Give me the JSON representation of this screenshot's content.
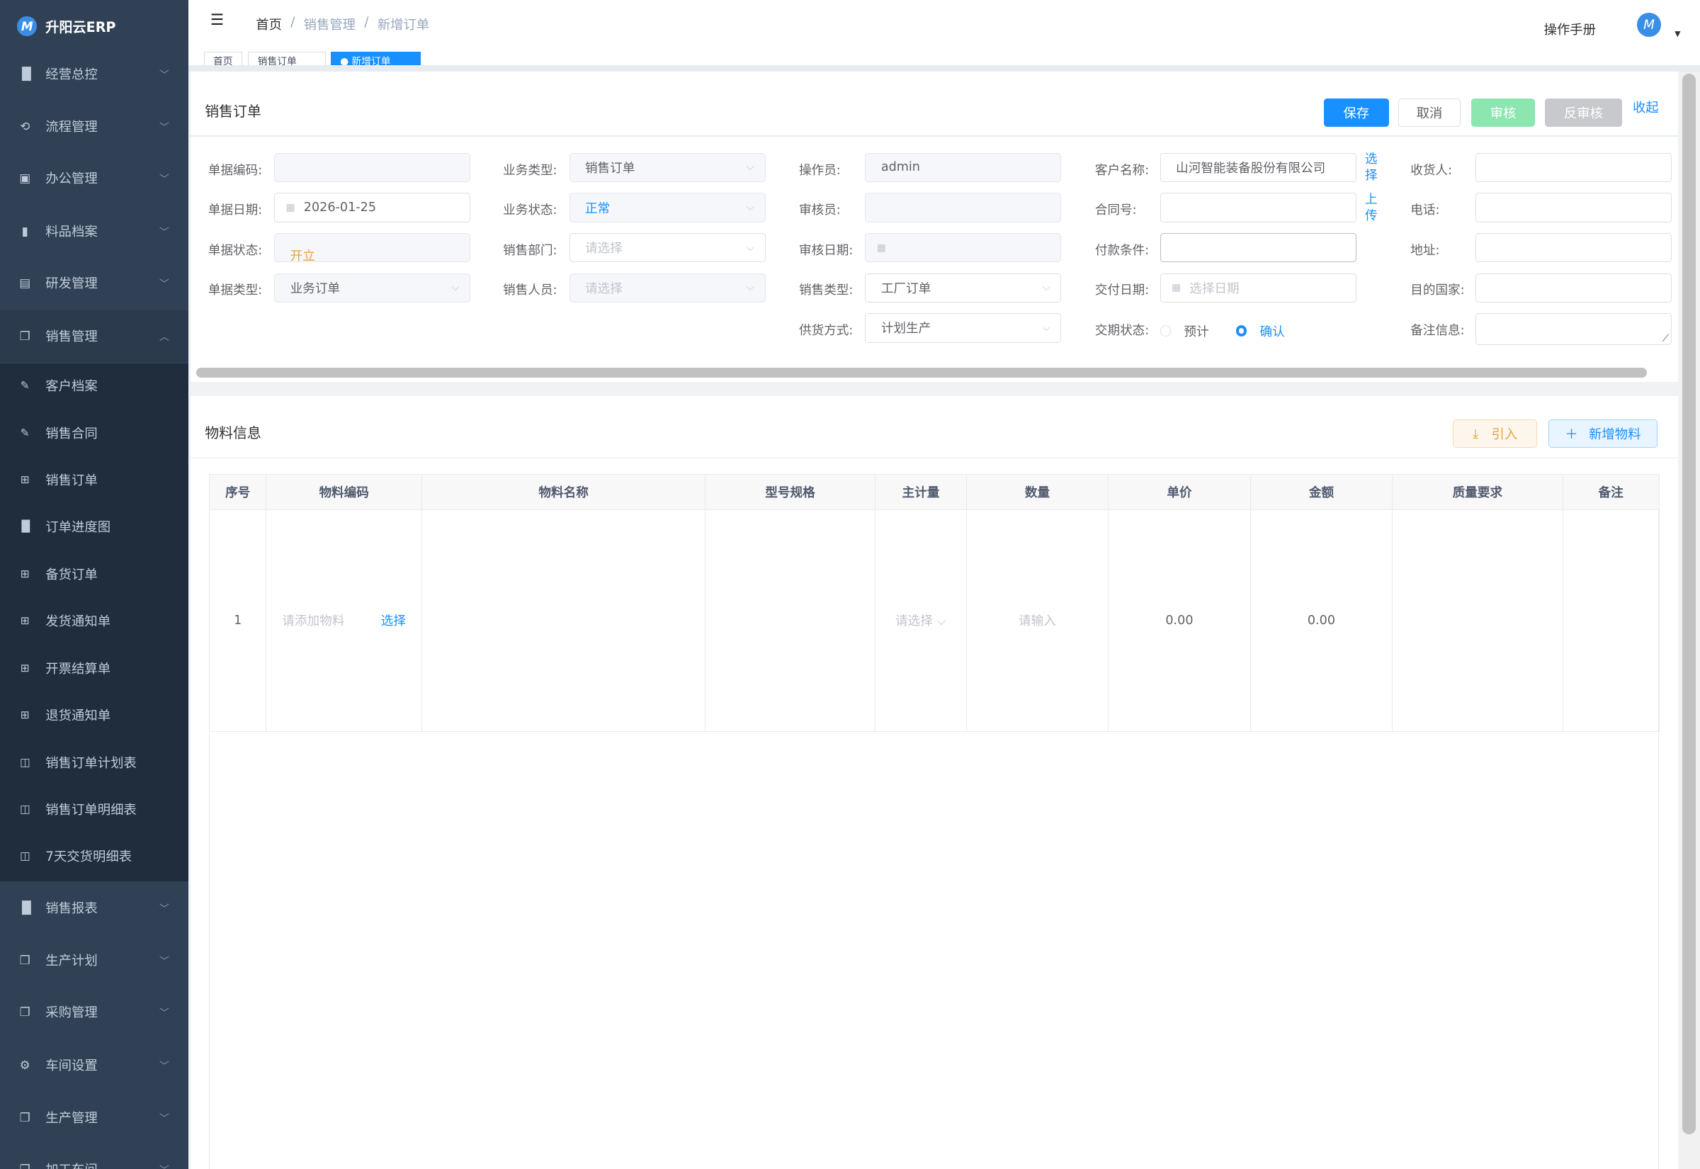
{
  "app": {
    "title": "升阳云ERP",
    "logo_letter": "M"
  },
  "sidebar": {
    "items": [
      {
        "label": "经营总控",
        "icon": "bar-chart-icon"
      },
      {
        "label": "流程管理",
        "icon": "flow-icon"
      },
      {
        "label": "办公管理",
        "icon": "office-icon"
      },
      {
        "label": "料品档案",
        "icon": "book-icon"
      },
      {
        "label": "研发管理",
        "icon": "research-icon"
      },
      {
        "label": "销售管理",
        "icon": "documents-icon",
        "expanded": true
      }
    ],
    "sub_items": [
      {
        "label": "客户档案",
        "icon": "edit-doc-icon"
      },
      {
        "label": "销售合同",
        "icon": "edit-doc-icon"
      },
      {
        "label": "销售订单",
        "icon": "table-icon"
      },
      {
        "label": "订单进度图",
        "icon": "bar-chart-icon"
      },
      {
        "label": "备货订单",
        "icon": "table-icon"
      },
      {
        "label": "发货通知单",
        "icon": "table-icon"
      },
      {
        "label": "开票结算单",
        "icon": "table-icon"
      },
      {
        "label": "退货通知单",
        "icon": "table-icon"
      },
      {
        "label": "销售订单计划表",
        "icon": "open-book-icon"
      },
      {
        "label": "销售订单明细表",
        "icon": "open-book-icon"
      },
      {
        "label": "7天交货明细表",
        "icon": "open-book-icon"
      }
    ],
    "items_after": [
      {
        "label": "销售报表",
        "icon": "bar-chart-icon"
      },
      {
        "label": "生产计划",
        "icon": "documents-icon"
      },
      {
        "label": "采购管理",
        "icon": "documents-icon"
      },
      {
        "label": "车间设置",
        "icon": "gear-icon"
      },
      {
        "label": "生产管理",
        "icon": "documents-icon"
      },
      {
        "label": "加工车间",
        "icon": "documents-icon"
      }
    ]
  },
  "navbar": {
    "breadcrumb": [
      "首页",
      "销售管理",
      "新增订单"
    ],
    "manual": "操作手册",
    "avatar_letter": "M"
  },
  "tabs": [
    {
      "label": "首页"
    },
    {
      "label": "销售订单"
    },
    {
      "label": "● 新增订单",
      "active": true
    }
  ],
  "order": {
    "title": "销售订单",
    "buttons": {
      "save": "保存",
      "cancel": "取消",
      "audit": "审核",
      "unaudit": "反审核",
      "collapse": "收起"
    },
    "fields": {
      "doc_code": {
        "label": "单据编码:",
        "value": ""
      },
      "doc_date": {
        "label": "单据日期:",
        "value": "2026-01-25"
      },
      "doc_status": {
        "label": "单据状态:",
        "value": "开立"
      },
      "doc_type": {
        "label": "单据类型:",
        "value": "业务订单"
      },
      "biz_type": {
        "label": "业务类型:",
        "value": "销售订单"
      },
      "biz_status": {
        "label": "业务状态:",
        "value": "正常"
      },
      "sales_dept": {
        "label": "销售部门:",
        "placeholder": "请选择"
      },
      "sales_person": {
        "label": "销售人员:",
        "placeholder": "请选择"
      },
      "operator": {
        "label": "操作员:",
        "value": "admin"
      },
      "auditor": {
        "label": "审核员:",
        "value": ""
      },
      "audit_date": {
        "label": "审核日期:",
        "value": ""
      },
      "sales_type": {
        "label": "销售类型:",
        "value": "工厂订单"
      },
      "supply_mode": {
        "label": "供货方式:",
        "value": "计划生产"
      },
      "customer": {
        "label": "客户名称:",
        "value": "山河智能装备股份有限公司",
        "link": "选择"
      },
      "contract": {
        "label": "合同号:",
        "value": "",
        "link": "上传"
      },
      "payment": {
        "label": "付款条件:",
        "value": ""
      },
      "delivery_date": {
        "label": "交付日期:",
        "placeholder": "选择日期"
      },
      "delivery_status": {
        "label": "交期状态:",
        "options": [
          "预计",
          "确认"
        ],
        "selected": "确认"
      },
      "receiver": {
        "label": "收货人:",
        "value": ""
      },
      "phone": {
        "label": "电话:",
        "value": ""
      },
      "address": {
        "label": "地址:",
        "value": ""
      },
      "country": {
        "label": "目的国家:",
        "value": ""
      },
      "remark": {
        "label": "备注信息:",
        "value": ""
      }
    }
  },
  "materials": {
    "title": "物料信息",
    "import_label": "引入",
    "add_label": "新增物料",
    "columns": [
      "序号",
      "物料编码",
      "物料名称",
      "型号规格",
      "主计量",
      "数量",
      "单价",
      "金额",
      "质量要求",
      "备注"
    ],
    "rows": [
      {
        "index": "1",
        "code_placeholder": "请添加物料",
        "select_link": "选择",
        "unit_placeholder": "请选择",
        "qty_placeholder": "请输入",
        "price": "0.00",
        "amount": "0.00"
      }
    ]
  },
  "colors": {
    "sidebar": "#304156",
    "submenu": "#1f2d3d",
    "primary": "#1890ff",
    "audit": "#8ce6b0",
    "unaudit": "#c8c9cc",
    "warning": "#e6a23c"
  }
}
